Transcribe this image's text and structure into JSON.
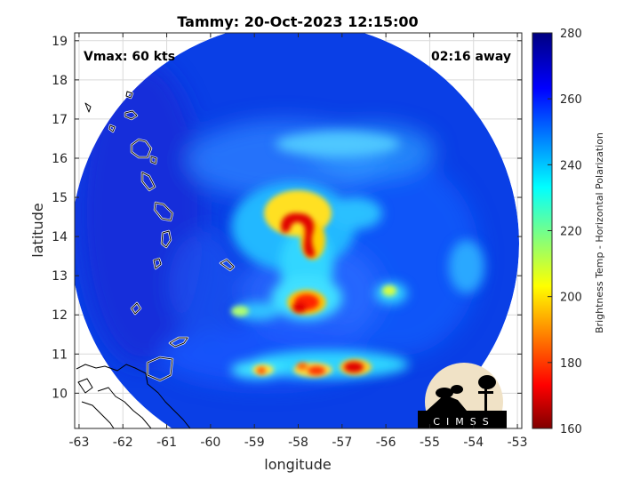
{
  "title": "Tammy: 20-Oct-2023 12:15:00",
  "intensity_label": "Vmax: 60 kts",
  "time_away_label": "02:16 away",
  "xlabel": "longitude",
  "ylabel": "latitude",
  "colorbar_label": "Brightness Temp - Horizontal Polarization",
  "logo_text": "CIMSS",
  "x_ticks": [
    "-63",
    "-62",
    "-61",
    "-60",
    "-59",
    "-58",
    "-57",
    "-56",
    "-55",
    "-54",
    "-53"
  ],
  "y_ticks": [
    "10",
    "11",
    "12",
    "13",
    "14",
    "15",
    "16",
    "17",
    "18",
    "19"
  ],
  "colorbar_ticks": [
    "160",
    "180",
    "200",
    "220",
    "240",
    "260",
    "280"
  ],
  "map": {
    "xlim": [
      -63.1,
      -52.9
    ],
    "ylim": [
      9.1,
      19.2
    ],
    "swath_center": {
      "lon": -58.4,
      "lat": 14.6
    },
    "colormap": "jet",
    "clim": [
      160,
      280
    ],
    "background_temp_k": 262,
    "features": [
      {
        "name": "eyewall-north",
        "lon": -57.9,
        "lat": 14.2,
        "min_temp_k": 172
      },
      {
        "name": "eyewall-south",
        "lon": -57.6,
        "lat": 13.7,
        "min_temp_k": 180
      },
      {
        "name": "inner-band",
        "lon": -57.8,
        "lat": 12.3,
        "min_temp_k": 180
      },
      {
        "name": "outer-band-south",
        "lon": -56.7,
        "lat": 10.6,
        "min_temp_k": 172
      }
    ]
  },
  "colors": {
    "coastline": "#ffffff",
    "frame": "#262626"
  }
}
